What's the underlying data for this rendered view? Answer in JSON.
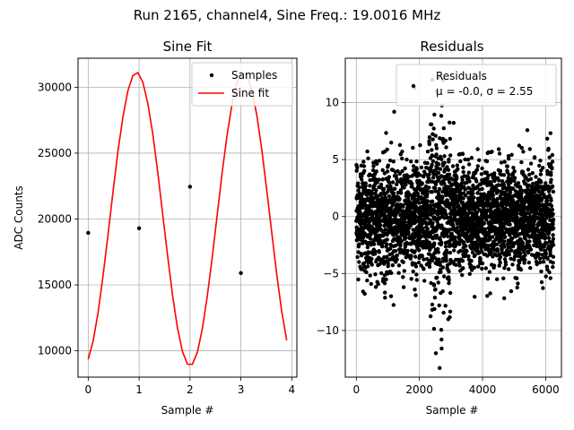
{
  "suptitle": "Run 2165, channel4, Sine Freq.: 19.0016 MHz",
  "chart_data": [
    {
      "type": "line",
      "title": "Sine Fit",
      "xlabel": "Sample #",
      "ylabel": "ADC Counts",
      "xlim": [
        -0.2,
        4.1
      ],
      "ylim": [
        8000,
        32200
      ],
      "xticks": [
        0,
        1,
        2,
        3,
        4
      ],
      "yticks": [
        10000,
        15000,
        20000,
        25000,
        30000
      ],
      "grid": true,
      "legend": "upper-right",
      "series": [
        {
          "name": "Samples",
          "style": "points",
          "color": "#000000",
          "x": [
            0,
            1,
            2,
            3
          ],
          "y": [
            18950,
            19300,
            22450,
            15900
          ]
        },
        {
          "name": "Sine fit",
          "style": "line",
          "color": "#ff0000",
          "model": {
            "offset": 20000,
            "amplitude": 11140,
            "period": 2.1,
            "phase": -0.1
          },
          "x_range": [
            0,
            3.9
          ],
          "samples": 41
        }
      ]
    },
    {
      "type": "scatter",
      "title": "Residuals",
      "xlabel": "Sample #",
      "ylabel": "",
      "xlim": [
        -350,
        6500
      ],
      "ylim": [
        -14.1,
        13.9
      ],
      "xticks": [
        0,
        2000,
        4000,
        6000
      ],
      "yticks": [
        -10,
        -5,
        0,
        5,
        10
      ],
      "grid": true,
      "legend": "upper-right",
      "legend_lines": [
        "Residuals",
        "μ = -0.0, σ = 2.55"
      ],
      "series": [
        {
          "name": "Residuals",
          "color": "#000000",
          "n_points": 6250,
          "mean": 0.0,
          "std": 2.55,
          "x_range": [
            0,
            6250
          ],
          "burst_center": 2650,
          "outliers": [
            [
              1200,
              9.2
            ],
            [
              1850,
              11.3
            ],
            [
              2600,
              12.2
            ],
            [
              2640,
              -13.3
            ],
            [
              2700,
              -10.8
            ],
            [
              1100,
              -7.0
            ],
            [
              2520,
              -12.0
            ]
          ]
        }
      ]
    }
  ]
}
